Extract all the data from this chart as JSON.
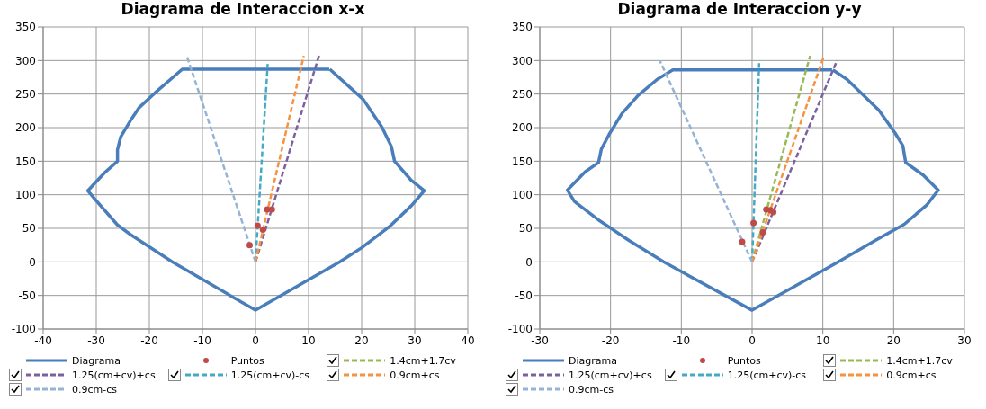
{
  "chart_data": [
    {
      "type": "line",
      "title": "Diagrama de Interaccion x-x",
      "xlim": [
        -40,
        40
      ],
      "xticks": [
        -40,
        -30,
        -20,
        -10,
        0,
        10,
        20,
        30,
        40
      ],
      "ylim": [
        -100,
        350
      ],
      "yticks": [
        -100,
        -50,
        0,
        50,
        100,
        150,
        200,
        250,
        300,
        350
      ],
      "grid": true,
      "legend": "bottom",
      "series": [
        {
          "name": "Diagrama",
          "color": "#4a7ebb",
          "x": [
            13.9,
            -13.8,
            -18.9,
            -21.9,
            -23.6,
            -25.4,
            -26,
            -26,
            -28.4,
            -31.6,
            -30.1,
            -26,
            -23.6,
            -15.7,
            0,
            15.9,
            20,
            25.3,
            29.4,
            31.8,
            29.4,
            26.2,
            25.6,
            23.8,
            20.3,
            14
          ],
          "values": [
            287,
            287,
            252,
            230,
            210,
            186,
            167,
            150,
            133,
            106,
            92,
            55,
            41,
            0,
            -72,
            0,
            21,
            53,
            84,
            106,
            121,
            150,
            172,
            201,
            242,
            287
          ]
        },
        {
          "name": "Puntos",
          "type": "scatter",
          "marker": "circle",
          "color": "#be4b48",
          "x": [
            -1.1,
            0.4,
            1.4,
            2.2,
            3.1
          ],
          "values": [
            25,
            54,
            48,
            78,
            78
          ]
        },
        {
          "name": "1.4cm+1.7cv",
          "line_style": "dashed",
          "color": "#98b954"
        },
        {
          "name": "1.25(cm+cv)+cs",
          "line_style": "dashed",
          "color": "#7d60a0",
          "x": [
            0,
            12
          ],
          "values": [
            0,
            308
          ]
        },
        {
          "name": "1.25(cm+cv)-cs",
          "line_style": "dashed",
          "color": "#46aac5",
          "x": [
            0,
            2.3
          ],
          "values": [
            0,
            295
          ]
        },
        {
          "name": "0.9cm+cs",
          "line_style": "dashed",
          "color": "#f69240",
          "x": [
            0,
            9.1
          ],
          "values": [
            0,
            307
          ]
        },
        {
          "name": "0.9cm-cs",
          "line_style": "dashed",
          "color": "#95b3d7",
          "x": [
            0,
            -13
          ],
          "values": [
            0,
            308
          ]
        }
      ]
    },
    {
      "type": "line",
      "title": "Diagrama de Interaccion y-y",
      "xlim": [
        -30,
        30
      ],
      "xticks": [
        -30,
        -20,
        -10,
        0,
        10,
        20,
        30
      ],
      "ylim": [
        -100,
        350
      ],
      "yticks": [
        -100,
        -50,
        0,
        50,
        100,
        150,
        200,
        250,
        300,
        350
      ],
      "grid": true,
      "legend": "bottom",
      "series": [
        {
          "name": "Diagrama",
          "color": "#4a7ebb",
          "x": [
            11.3,
            -11.2,
            -13.4,
            -16.1,
            -18.4,
            -20.2,
            -21.3,
            -21.7,
            -23.6,
            -26.1,
            -25.1,
            -21.5,
            -17.4,
            -12.5,
            0,
            12.2,
            17.4,
            21.5,
            24.7,
            26.3,
            24.2,
            21.7,
            21.3,
            20.2,
            17.9,
            13.4,
            11.4
          ],
          "values": [
            286,
            286,
            272,
            248,
            221,
            190,
            168,
            148,
            134,
            107,
            90,
            61,
            32,
            0,
            -72,
            0,
            32,
            56,
            85,
            107,
            129,
            148,
            173,
            192,
            226,
            272,
            286
          ]
        },
        {
          "name": "Puntos",
          "type": "scatter",
          "marker": "circle",
          "color": "#be4b48",
          "x": [
            -1.4,
            0.2,
            1.5,
            2.0,
            2.6,
            3.0
          ],
          "values": [
            30,
            58,
            44,
            78,
            77,
            74
          ]
        },
        {
          "name": "1.4cm+1.7cv",
          "line_style": "dashed",
          "color": "#98b954",
          "x": [
            0,
            8.2
          ],
          "values": [
            0,
            307
          ]
        },
        {
          "name": "1.25(cm+cv)+cs",
          "line_style": "dashed",
          "color": "#7d60a0",
          "x": [
            0,
            12
          ],
          "values": [
            0,
            300
          ]
        },
        {
          "name": "1.25(cm+cv)-cs",
          "line_style": "dashed",
          "color": "#46aac5",
          "x": [
            0,
            1
          ],
          "values": [
            0,
            296
          ]
        },
        {
          "name": "0.9cm+cs",
          "line_style": "dashed",
          "color": "#f69240",
          "x": [
            0,
            10.1
          ],
          "values": [
            0,
            305
          ]
        },
        {
          "name": "0.9cm-cs",
          "line_style": "dashed",
          "color": "#95b3d7",
          "x": [
            0,
            -13
          ],
          "values": [
            0,
            299
          ]
        }
      ]
    }
  ]
}
